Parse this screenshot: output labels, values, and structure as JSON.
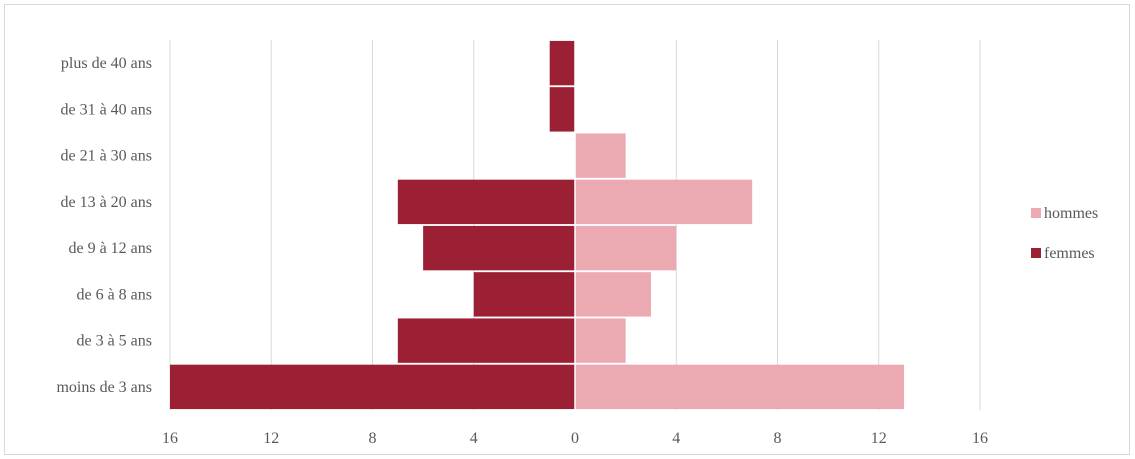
{
  "chart_data": {
    "type": "bar",
    "orientation": "horizontal",
    "layout": "population-pyramid",
    "categories": [
      "plus de 40 ans",
      "de 31 à 40 ans",
      "de 21 à 30 ans",
      "de 13 à 20 ans",
      "de 9 à 12 ans",
      "de 6 à 8 ans",
      "de 3 à 5 ans",
      "moins de 3 ans"
    ],
    "series": [
      {
        "name": "hommes",
        "color": "#eba9b2",
        "values": [
          0,
          0,
          2,
          7,
          4,
          3,
          2,
          13
        ]
      },
      {
        "name": "femmes",
        "color": "#9b2034",
        "values": [
          1,
          1,
          0,
          7,
          6,
          4,
          7,
          16
        ]
      }
    ],
    "xlim": [
      -16,
      16
    ],
    "xticks": [
      -16,
      -12,
      -8,
      -4,
      0,
      4,
      8,
      12,
      16
    ],
    "xtick_labels": [
      "16",
      "12",
      "8",
      "4",
      "0",
      "4",
      "8",
      "12",
      "16"
    ],
    "grid": true,
    "legend": "right"
  }
}
